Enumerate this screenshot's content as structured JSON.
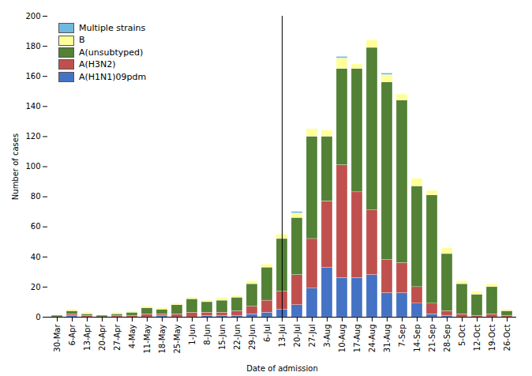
{
  "chart_data": {
    "type": "bar",
    "stacked": true,
    "xlabel": "Date of admission",
    "ylabel": "Number of cases",
    "categories": [
      "30-Mar",
      "6-Apr",
      "13-Apr",
      "20-Apr",
      "27-Apr",
      "4-May",
      "11-May",
      "18-May",
      "25-May",
      "1-Jun",
      "8-Jun",
      "15-Jun",
      "22-Jun",
      "29-Jun",
      "6-Jul",
      "13-Jul",
      "20-Jul",
      "27-Jul",
      "3-Aug",
      "10-Aug",
      "17-Aug",
      "24-Aug",
      "31-Aug",
      "7-Sep",
      "14-Sep",
      "21-Sep",
      "28-Sep",
      "5-Oct",
      "12-Oct",
      "19-Oct",
      "26-Oct"
    ],
    "series": [
      {
        "name": "A(H1N1)09pdm",
        "color": "#4472C4",
        "values": [
          0,
          1,
          0,
          0,
          0,
          0,
          0,
          1,
          0,
          0,
          1,
          1,
          1,
          2,
          3,
          5,
          8,
          19,
          33,
          26,
          26,
          28,
          16,
          16,
          9,
          2,
          1,
          0,
          0,
          0,
          0
        ]
      },
      {
        "name": "A(H3N2)",
        "color": "#C0504D",
        "values": [
          0,
          1,
          1,
          0,
          1,
          1,
          2,
          1,
          2,
          3,
          2,
          2,
          3,
          5,
          8,
          12,
          20,
          33,
          44,
          75,
          57,
          43,
          22,
          20,
          11,
          7,
          3,
          2,
          1,
          2,
          1
        ]
      },
      {
        "name": "A(unsubtyped)",
        "color": "#538135",
        "values": [
          1,
          2,
          1,
          1,
          1,
          2,
          4,
          3,
          6,
          9,
          7,
          8,
          9,
          15,
          22,
          35,
          38,
          68,
          43,
          64,
          82,
          108,
          118,
          108,
          67,
          72,
          38,
          20,
          14,
          18,
          3
        ]
      },
      {
        "name": "B",
        "color": "#FFFF99",
        "values": [
          0,
          1,
          1,
          0,
          1,
          1,
          1,
          1,
          1,
          1,
          1,
          2,
          1,
          2,
          2,
          3,
          3,
          5,
          4,
          7,
          3,
          5,
          5,
          4,
          5,
          3,
          4,
          2,
          2,
          2,
          1
        ]
      },
      {
        "name": "Multiple strains",
        "color": "#70B8E0",
        "values": [
          0,
          0,
          0,
          0,
          0,
          0,
          0,
          0,
          0,
          0,
          0,
          0,
          0,
          0,
          0,
          0,
          1,
          0,
          0,
          1,
          0,
          0,
          1,
          0,
          0,
          0,
          0,
          0,
          0,
          0,
          0
        ]
      }
    ],
    "ylim": [
      0,
      200
    ],
    "yticks": [
      0,
      20,
      40,
      60,
      80,
      100,
      120,
      140,
      160,
      180,
      200
    ],
    "grid": false,
    "legend": "upper left"
  }
}
